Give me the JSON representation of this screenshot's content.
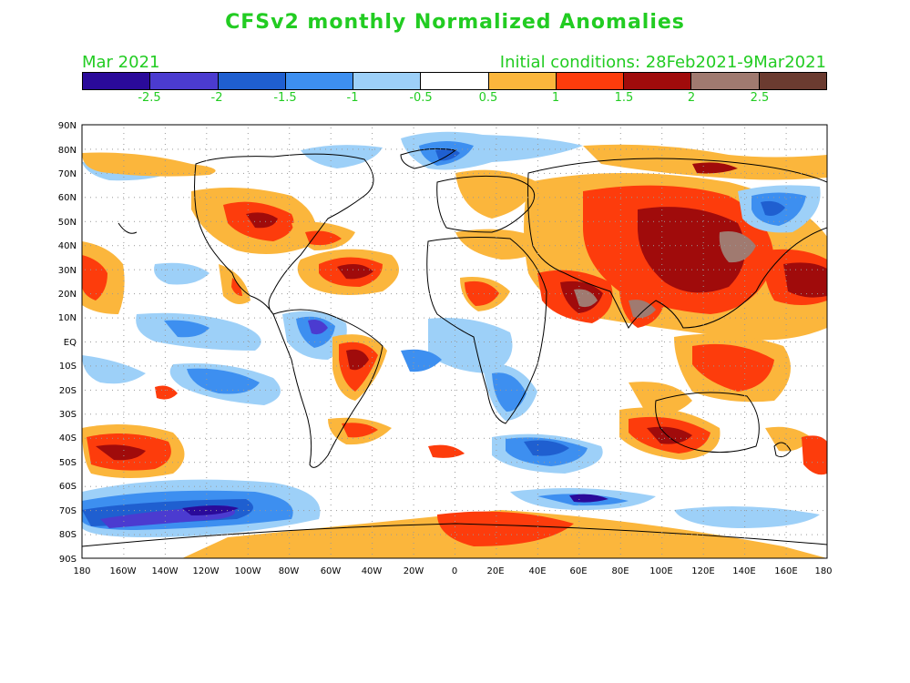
{
  "title": "CFSv2 monthly Normalized Anomalies",
  "month_label": "Mar 2021",
  "init_label": "Initial conditions: 28Feb2021-9Mar2021",
  "colorbar": {
    "colors": [
      "#2a0a9a",
      "#4b3bd0",
      "#1f5fd0",
      "#3d8ff0",
      "#9dd0f8",
      "#ffffff",
      "#fbb63c",
      "#fd3c0c",
      "#a00b0b",
      "#a07a70",
      "#6b3b30"
    ],
    "labels": [
      "-2.5",
      "-2",
      "-1.5",
      "-1",
      "-0.5",
      "0.5",
      "1",
      "1.5",
      "2",
      "2.5"
    ]
  },
  "map": {
    "lat_labels": [
      "90N",
      "80N",
      "70N",
      "60N",
      "50N",
      "40N",
      "30N",
      "20N",
      "10N",
      "EQ",
      "10S",
      "20S",
      "30S",
      "40S",
      "50S",
      "60S",
      "70S",
      "80S",
      "90S"
    ],
    "lon_labels": [
      "180",
      "160W",
      "140W",
      "120W",
      "100W",
      "80W",
      "60W",
      "40W",
      "20W",
      "0",
      "20E",
      "40E",
      "60E",
      "80E",
      "100E",
      "120E",
      "140E",
      "160E",
      "180"
    ],
    "anomaly_levels": [
      -2.5,
      -2,
      -1.5,
      -1,
      -0.5,
      0.5,
      1,
      1.5,
      2,
      2.5
    ]
  }
}
